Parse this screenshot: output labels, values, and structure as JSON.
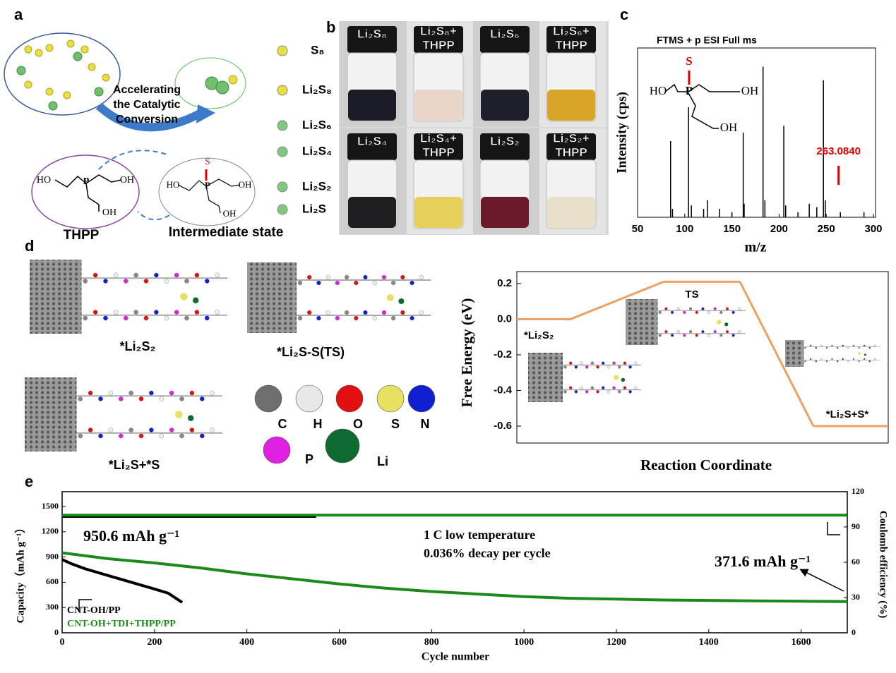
{
  "panels": {
    "labels": [
      "a",
      "b",
      "c",
      "d",
      "e"
    ],
    "a": {
      "species": [
        "S₈",
        "Li₂S₈",
        "Li₂S₆",
        "Li₂S₄",
        "Li₂S₂",
        "Li₂S"
      ],
      "arrow_text": [
        "Accelerating",
        "the Catalytic",
        "Conversion"
      ],
      "thpp": "THPP",
      "intermediate": "Intermediate state",
      "thpp_atoms": [
        "HO",
        "P",
        "OH",
        "OH"
      ],
      "intermediate_atoms": [
        "S",
        "HO",
        "P",
        "OH",
        "OH"
      ]
    },
    "b": {
      "vials": [
        [
          "Li₂S₈"
        ],
        [
          "Li₂S₈+",
          "THPP"
        ],
        [
          "Li₂S₆"
        ],
        [
          "Li₂S₆+",
          "THPP"
        ],
        [
          "Li₂S₄"
        ],
        [
          "Li₂S₄+",
          "THPP"
        ],
        [
          "Li₂S₂"
        ],
        [
          "Li₂S₂+",
          "THPP"
        ]
      ],
      "liquid_colors": [
        "#1c1c26",
        "#ead6c8",
        "#1d1f2a",
        "#d9a526",
        "#1e1e22",
        "#e6cf5a",
        "#6a1a2a",
        "#e8e0c8"
      ]
    },
    "c": {
      "structure_atoms": [
        "S",
        "HO",
        "P",
        "OH",
        "OH"
      ]
    },
    "d": {
      "structures": [
        "*Li₂S₂",
        "*Li₂S-S(TS)",
        "*Li₂S+*S"
      ],
      "atoms": [
        "C",
        "H",
        "O",
        "S",
        "N",
        "P",
        "Li"
      ],
      "atom_colors": [
        "#6e6e6e",
        "#e8e8e8",
        "#e01010",
        "#e8e060",
        "#1020d0",
        "#e020e0",
        "#0e6a30"
      ]
    }
  },
  "chart_data": [
    {
      "type": "spectrum",
      "title": "FTMS + p ESI Full ms",
      "x_label": "m/z",
      "y_label": "Intensity (cps)",
      "x": [
        85,
        87,
        104,
        107,
        120,
        124,
        137,
        150,
        162,
        163,
        183,
        185,
        205,
        207,
        220,
        232,
        240,
        247,
        249,
        265,
        290
      ],
      "values": [
        45,
        5,
        65,
        7,
        5,
        10,
        5,
        3,
        50,
        8,
        89,
        10,
        54,
        7,
        3,
        8,
        6,
        81,
        10,
        3,
        3
      ],
      "xlim": [
        50,
        300
      ],
      "xticks": [
        50,
        100,
        150,
        200,
        250,
        300
      ],
      "ylim": [
        0,
        100
      ],
      "color": "#000000",
      "annotation": {
        "text": "263.0840",
        "x": 263.084,
        "color": "#e00000"
      }
    },
    {
      "type": "energy_profile",
      "x_label": "Reaction Coordinate",
      "y_label": "Free Energy (eV)",
      "categories": [
        "*Li₂S₂",
        "TS",
        "*Li₂S+S*"
      ],
      "values": [
        0,
        0.21,
        -0.6
      ],
      "ylim": [
        -0.695,
        0.267
      ],
      "yticks": [
        0.2,
        {
          "value": 0,
          "label": "0.0"
        },
        -0.2,
        -0.4,
        -0.6
      ],
      "color": "#f0a060"
    },
    {
      "type": "line",
      "x_label": "Cycle number",
      "y_label": "Capacity（mAh g⁻¹）",
      "y2_label": "Coulomb efficiency (%)",
      "xlim": [
        0,
        1700
      ],
      "xticks": [
        0,
        200,
        400,
        600,
        800,
        1000,
        1200,
        1400,
        1600
      ],
      "ylim": [
        0,
        1676
      ],
      "yticks": [
        0,
        300,
        600,
        900,
        1200,
        1500
      ],
      "y2lim": [
        0,
        120
      ],
      "y2ticks": [
        0,
        30,
        60,
        90,
        120
      ],
      "annotations": [
        "950.6 mAh g⁻¹",
        "1 C    low temperature",
        "0.036% decay per cycle",
        "371.6 mAh g⁻¹"
      ],
      "series": [
        {
          "name": "CNT-OH/PP",
          "color": "#000000",
          "x": [
            0,
            20,
            50,
            100,
            150,
            200,
            230,
            260
          ],
          "values": [
            870,
            820,
            760,
            680,
            600,
            520,
            470,
            360
          ]
        },
        {
          "name": "CNT-OH+TDI+THPP/PP",
          "color": "#1a8a1a",
          "x": [
            0,
            100,
            200,
            300,
            400,
            500,
            600,
            700,
            800,
            900,
            1000,
            1100,
            1200,
            1300,
            1400,
            1500,
            1600,
            1700
          ],
          "values": [
            950.6,
            880,
            830,
            770,
            700,
            640,
            580,
            530,
            490,
            460,
            430,
            410,
            400,
            390,
            385,
            380,
            375,
            371.6
          ]
        },
        {
          "color": "#000000",
          "axis": "y2",
          "x": [
            0,
            550
          ],
          "values": [
            99,
            99
          ]
        },
        {
          "color": "#1a8a1a",
          "axis": "y2",
          "x": [
            0,
            1700
          ],
          "values": [
            100,
            100
          ]
        }
      ]
    }
  ]
}
